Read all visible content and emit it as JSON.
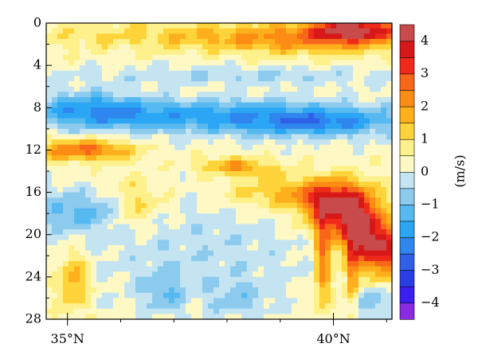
{
  "chart_data": {
    "type": "heatmap",
    "title": "",
    "xlabel": "",
    "ylabel": "",
    "x_range": [
      34.6,
      41.1
    ],
    "y_range": [
      0,
      28
    ],
    "y_inverted": true,
    "x_ticks": [
      {
        "value": 35,
        "label": "35°N"
      },
      {
        "value": 40,
        "label": "40°N"
      }
    ],
    "x_minor_ticks": [
      36,
      37,
      38,
      39,
      41
    ],
    "y_ticks": [
      {
        "value": 0,
        "label": "0"
      },
      {
        "value": 4,
        "label": "4"
      },
      {
        "value": 8,
        "label": "8"
      },
      {
        "value": 12,
        "label": "12"
      },
      {
        "value": 16,
        "label": "16"
      },
      {
        "value": 20,
        "label": "20"
      },
      {
        "value": 24,
        "label": "24"
      },
      {
        "value": 28,
        "label": "28"
      }
    ],
    "colorbar": {
      "unit": "(m/s)",
      "levels": [
        -4.5,
        -4,
        -3.5,
        -3,
        -2.5,
        -2,
        -1.5,
        -1,
        -0.5,
        0,
        0.5,
        1,
        1.5,
        2,
        2.5,
        3,
        3.5,
        4,
        4.5
      ],
      "colors": [
        "#8a2be2",
        "#3a1ff0",
        "#2a3ee6",
        "#3060e8",
        "#2e86ee",
        "#2aa6f4",
        "#56baf0",
        "#8ccbee",
        "#c4e4f2",
        "#fef9c4",
        "#fef08a",
        "#fed43a",
        "#feb01c",
        "#fd8c14",
        "#f8661a",
        "#ef2a1a",
        "#d61818",
        "#c84a4a"
      ],
      "tick_labels": [
        {
          "value": 4,
          "label": "4"
        },
        {
          "value": 3,
          "label": "3"
        },
        {
          "value": 2,
          "label": "2"
        },
        {
          "value": 1,
          "label": "1"
        },
        {
          "value": 0,
          "label": "0"
        },
        {
          "value": -1,
          "label": "−1"
        },
        {
          "value": -2,
          "label": "−2"
        },
        {
          "value": -3,
          "label": "−3"
        },
        {
          "value": -4,
          "label": "−4"
        }
      ]
    },
    "features": [
      {
        "cx": 37.6,
        "cy": 8.8,
        "sx": 3.2,
        "sy": 1.6,
        "a": -2.0
      },
      {
        "cx": 35.4,
        "cy": 8.0,
        "sx": 1.0,
        "sy": 1.6,
        "a": -1.4
      },
      {
        "cx": 39.8,
        "cy": 9.5,
        "sx": 1.4,
        "sy": 1.3,
        "a": -1.6
      },
      {
        "cx": 38.5,
        "cy": 5.0,
        "sx": 3.5,
        "sy": 0.9,
        "a": -0.7
      },
      {
        "cx": 40.4,
        "cy": 0.6,
        "sx": 0.8,
        "sy": 1.1,
        "a": 3.6
      },
      {
        "cx": 39.6,
        "cy": 1.6,
        "sx": 1.8,
        "sy": 1.4,
        "a": 1.6
      },
      {
        "cx": 37.0,
        "cy": 1.2,
        "sx": 3.0,
        "sy": 1.4,
        "a": 0.9
      },
      {
        "cx": 35.3,
        "cy": 12.0,
        "sx": 0.9,
        "sy": 1.0,
        "a": 2.4
      },
      {
        "cx": 35.0,
        "cy": 17.8,
        "sx": 0.5,
        "sy": 2.0,
        "a": -1.4
      },
      {
        "cx": 35.7,
        "cy": 17.8,
        "sx": 0.3,
        "sy": 1.4,
        "a": -0.9
      },
      {
        "cx": 37.5,
        "cy": 21.5,
        "sx": 2.5,
        "sy": 5.0,
        "a": -0.6
      },
      {
        "cx": 36.3,
        "cy": 17.0,
        "sx": 0.5,
        "sy": 2.5,
        "a": 0.9
      },
      {
        "cx": 38.0,
        "cy": 13.5,
        "sx": 0.6,
        "sy": 0.8,
        "a": 1.4
      },
      {
        "cx": 35.1,
        "cy": 24.5,
        "sx": 0.3,
        "sy": 2.8,
        "a": 1.6
      },
      {
        "cx": 40.0,
        "cy": 17.5,
        "sx": 0.6,
        "sy": 2.5,
        "a": 3.0
      },
      {
        "cx": 40.5,
        "cy": 19.5,
        "sx": 0.4,
        "sy": 3.0,
        "a": 3.6
      },
      {
        "cx": 39.8,
        "cy": 22.5,
        "sx": 0.15,
        "sy": 4.5,
        "a": 2.3
      },
      {
        "cx": 40.35,
        "cy": 23.5,
        "sx": 0.12,
        "sy": 3.5,
        "a": 2.0
      },
      {
        "cx": 41.0,
        "cy": 21.5,
        "sx": 0.4,
        "sy": 2.5,
        "a": 3.2
      },
      {
        "cx": 39.3,
        "cy": 16.2,
        "sx": 1.2,
        "sy": 1.4,
        "a": 1.5
      },
      {
        "cx": 38.6,
        "cy": 14.0,
        "sx": 0.6,
        "sy": 1.0,
        "a": 0.9
      },
      {
        "cx": 36.8,
        "cy": 25.5,
        "sx": 0.4,
        "sy": 2.0,
        "a": -1.0
      },
      {
        "cx": 38.2,
        "cy": 26.0,
        "sx": 0.6,
        "sy": 1.8,
        "a": -0.8
      },
      {
        "cx": 40.7,
        "cy": 26.5,
        "sx": 0.3,
        "sy": 1.6,
        "a": -1.2
      }
    ]
  }
}
